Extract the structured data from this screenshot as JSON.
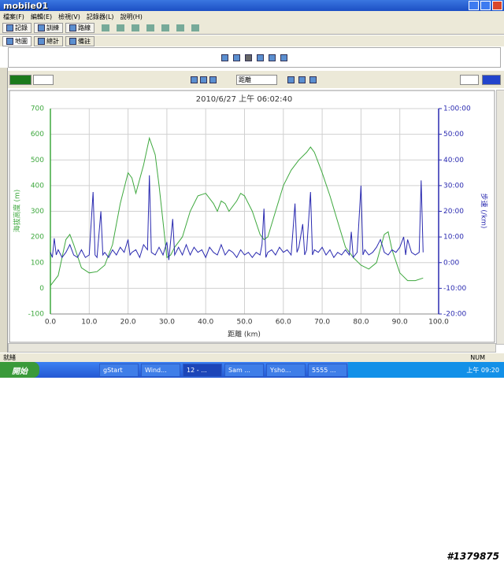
{
  "app": {
    "logo": "mobile01",
    "menu": [
      "檔案(F)",
      "編輯(E)",
      "檢視(V)",
      "記錄器(L)",
      "說明(H)"
    ],
    "toolbar": [
      "記錄",
      "訓練",
      "路線"
    ],
    "tabs": [
      "地圖",
      "總計",
      "備註"
    ],
    "distance_select": "距離",
    "status": "就緒",
    "status_right": "NUM",
    "start": "開始",
    "tasks": [
      "gStart",
      "Wind...",
      "12 - ...",
      "Sam ...",
      "Ysho...",
      "5555 ..."
    ],
    "clock": "上午 09:20",
    "watermark": "#1379875"
  },
  "chart_data": {
    "type": "line",
    "title": "2010/6/27 上午 06:02:40",
    "x_label": "距離 (km)",
    "y_label": "海拔高度 (m)",
    "y2_label": "步速 (/km)",
    "xlim": [
      0,
      100
    ],
    "xticks": [
      {
        "value": 0,
        "label": "0.0"
      },
      {
        "value": 10,
        "label": "10.0"
      },
      {
        "value": 20,
        "label": "20.0"
      },
      {
        "value": 30,
        "label": "30.0"
      },
      {
        "value": 40,
        "label": "40.0"
      },
      {
        "value": 50,
        "label": "50.0"
      },
      {
        "value": 60,
        "label": "60.0"
      },
      {
        "value": 70,
        "label": "70.0"
      },
      {
        "value": 80,
        "label": "80.0"
      },
      {
        "value": 90,
        "label": "90.0"
      },
      {
        "value": 100,
        "label": "100.0"
      }
    ],
    "ylim": [
      -100,
      700
    ],
    "yticks": [
      -100,
      0,
      100,
      200,
      300,
      400,
      500,
      600,
      700
    ],
    "y2lim": [
      -20,
      60
    ],
    "y2ticks": [
      {
        "value": -20,
        "label": "-20:00"
      },
      {
        "value": -10,
        "label": "-10:00"
      },
      {
        "value": 0,
        "label": "0:00"
      },
      {
        "value": 10,
        "label": "10:00"
      },
      {
        "value": 20,
        "label": "20:00"
      },
      {
        "value": 30,
        "label": "30:00"
      },
      {
        "value": 40,
        "label": "40:00"
      },
      {
        "value": 50,
        "label": "50:00"
      },
      {
        "value": 60,
        "label": "1:00:00"
      }
    ],
    "grid": true,
    "series": [
      {
        "color": "#3ea83e",
        "axis": "y",
        "x": [
          0,
          2,
          4,
          5,
          6,
          8,
          10,
          12,
          14,
          16,
          18,
          20,
          21,
          22,
          24,
          25.5,
          27,
          28,
          29,
          30,
          31,
          32,
          34,
          36,
          38,
          40,
          42,
          43,
          44,
          45,
          46,
          48,
          49,
          50,
          52,
          54,
          55,
          56,
          58,
          60,
          62,
          64,
          66,
          67,
          68,
          70,
          72,
          74,
          76,
          78,
          80,
          82,
          84,
          86,
          87,
          88,
          90,
          92,
          94,
          96
        ],
        "values": [
          10,
          50,
          190,
          210,
          170,
          80,
          60,
          65,
          90,
          170,
          330,
          450,
          430,
          370,
          480,
          585,
          520,
          400,
          260,
          120,
          130,
          160,
          200,
          300,
          360,
          370,
          330,
          300,
          340,
          330,
          300,
          340,
          370,
          360,
          300,
          210,
          190,
          200,
          300,
          400,
          460,
          500,
          530,
          550,
          530,
          450,
          360,
          260,
          160,
          120,
          90,
          75,
          100,
          210,
          220,
          150,
          60,
          30,
          30,
          40
        ]
      },
      {
        "color": "#2a2ab0",
        "axis": "y2",
        "x": [
          0,
          0.5,
          1,
          1.5,
          2,
          3,
          4,
          5,
          6,
          7,
          8,
          9,
          10,
          11,
          11.5,
          12,
          13,
          13.5,
          14,
          15,
          16,
          17,
          18,
          19,
          20,
          20.5,
          21,
          22,
          23,
          24,
          25,
          25.5,
          26,
          27,
          28,
          29,
          30,
          30.5,
          31.5,
          32,
          33,
          34,
          35,
          36,
          37,
          38,
          39,
          40,
          41,
          42,
          43,
          44,
          45,
          46,
          47,
          48,
          49,
          50,
          51,
          52,
          53,
          54,
          54.5,
          55,
          55.5,
          56,
          57,
          58,
          59,
          60,
          61,
          62,
          63,
          63.5,
          64,
          65,
          65.5,
          66,
          67,
          67.5,
          68,
          69,
          70,
          71,
          72,
          73,
          74,
          75,
          76,
          77,
          77.5,
          78,
          79,
          80,
          80.5,
          81,
          82,
          83,
          84,
          85,
          86,
          87,
          88,
          89,
          90,
          91,
          91.5,
          92,
          93,
          94,
          95,
          95.5,
          96
        ],
        "values": [
          4,
          2,
          9.5,
          3,
          5,
          2,
          4,
          7,
          3,
          2,
          5,
          2,
          3,
          27.5,
          3,
          2,
          20,
          3,
          4,
          2,
          5,
          3,
          6,
          4,
          9,
          3,
          4,
          5,
          2,
          7,
          5,
          34,
          4,
          3,
          6,
          3,
          8,
          1,
          17,
          3,
          6,
          3,
          7,
          3,
          6,
          4,
          5,
          2,
          6,
          4,
          3,
          7,
          3,
          5,
          4,
          2,
          5,
          3,
          4,
          2,
          4,
          3,
          7,
          21,
          2,
          4,
          5,
          3,
          6,
          4,
          5,
          3,
          23,
          4,
          6,
          15,
          3,
          5,
          27.5,
          3,
          5,
          4,
          6,
          3,
          5,
          2,
          4,
          3,
          5,
          3,
          12,
          2,
          4,
          30,
          3,
          5,
          3,
          4,
          6,
          9,
          4,
          3,
          5,
          4,
          6,
          10,
          3,
          9,
          4,
          3,
          4,
          32,
          4
        ]
      }
    ]
  }
}
